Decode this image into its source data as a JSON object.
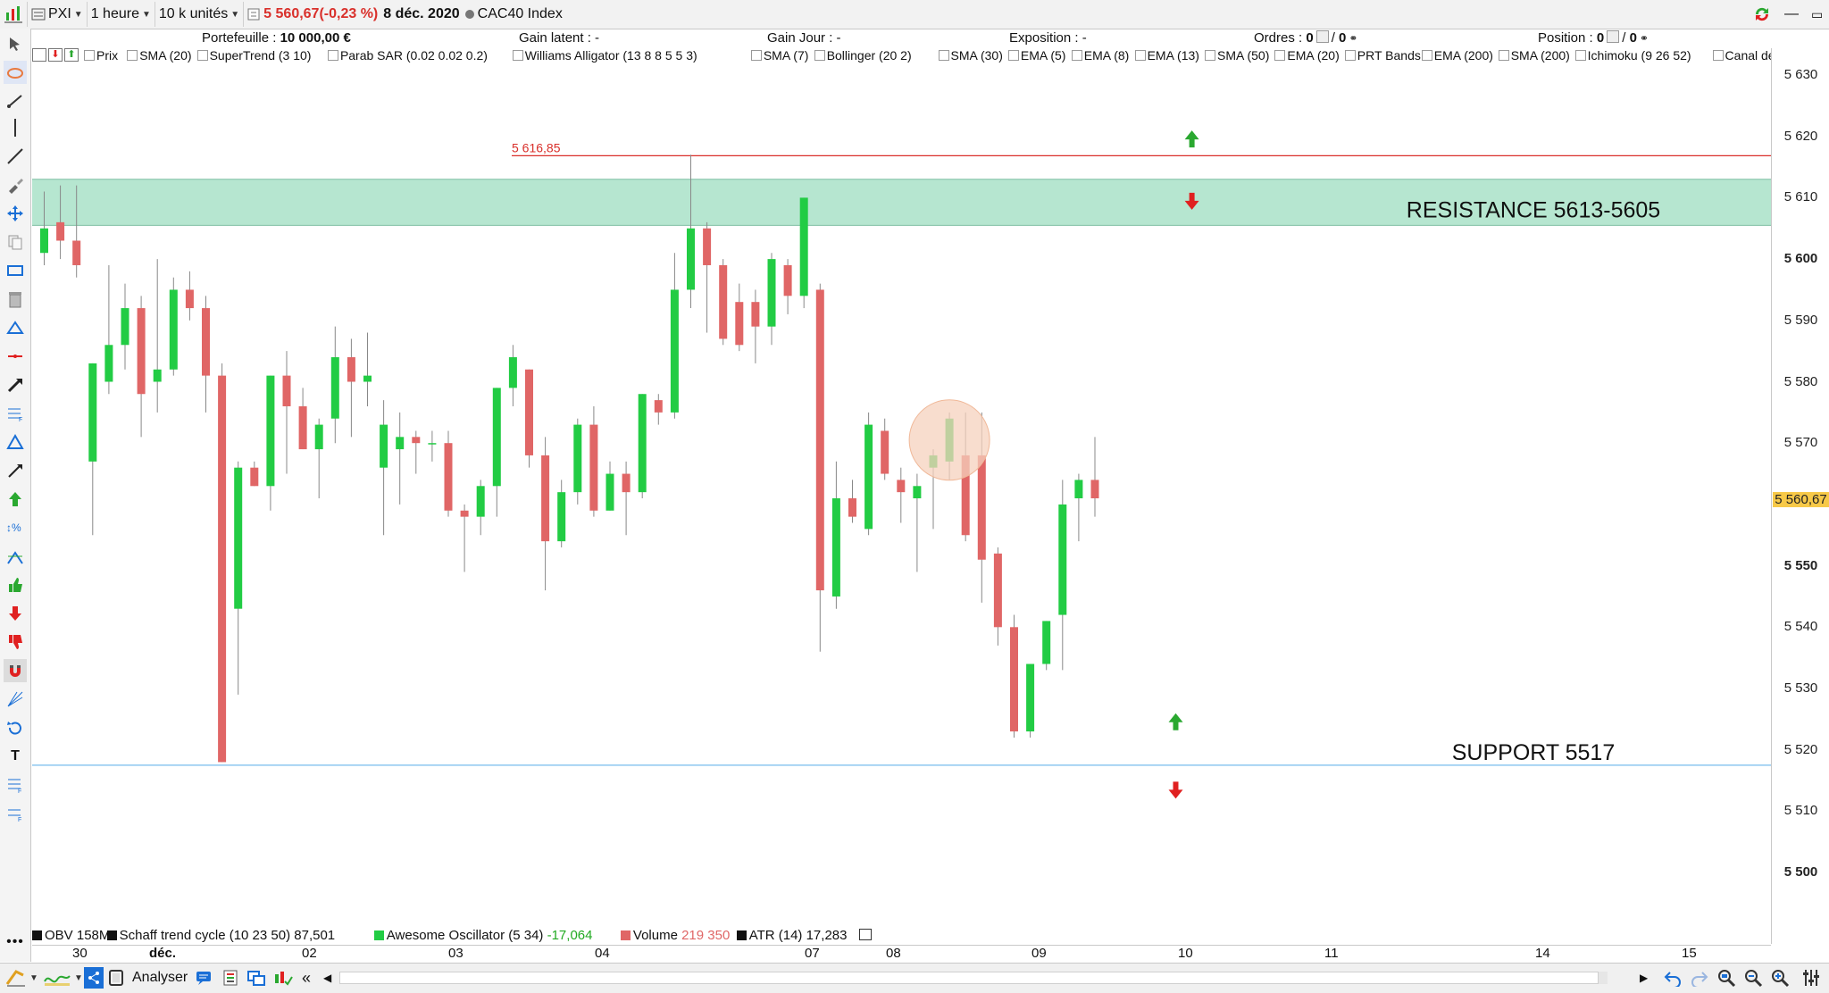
{
  "toolbar": {
    "symbol": "PXI",
    "timeframe": "1 heure",
    "units": "10 k unités",
    "price": "5 560,67",
    "change": "(-0,23 %)",
    "date": "8 déc. 2020",
    "instrument": "CAC40 Index"
  },
  "info": {
    "portfolio_label": "Portefeuille :",
    "portfolio_value": "10 000,00 €",
    "latent_gain": "Gain latent : -",
    "day_gain": "Gain Jour : -",
    "exposure": "Exposition : -",
    "orders_label": "Ordres :",
    "orders_value": "0",
    "orders_value2": "0",
    "position_label": "Position :",
    "position_value": "0",
    "position_value2": "0"
  },
  "indicators": [
    "Prix",
    "SMA (20)",
    "SuperTrend (3 10)",
    "Parab SAR (0.02 0.02 0.2)",
    "Williams Alligator (13 8 8 5 5 3)",
    "SMA (7)",
    "Bollinger (20 2)",
    "SMA (30)",
    "EMA (5)",
    "EMA (8)",
    "EMA (13)",
    "SMA (50)",
    "EMA (20)",
    "PRT Bands",
    "EMA (200)",
    "SMA (200)",
    "Ichimoku (9 26 52)",
    "Canal de Don"
  ],
  "chart_data": {
    "type": "candlestick",
    "ylim": [
      5497,
      5633
    ],
    "y_ticks": [
      "5 630",
      "5 620",
      "5 610",
      "5 600",
      "5 590",
      "5 580",
      "5 570",
      "5 560,67",
      "5 550",
      "5 540",
      "5 530",
      "5 520",
      "5 510",
      "5 500"
    ],
    "bold_ticks": [
      "5 600",
      "5 550",
      "5 500"
    ],
    "current_price": 5560.67,
    "current_price_label": "5 560,67",
    "x_labels": [
      "30",
      "déc.",
      "02",
      "03",
      "04",
      "07",
      "08",
      "09",
      "10",
      "11",
      "14",
      "15"
    ],
    "horizontal_line": {
      "value": 5616.85,
      "label": "5 616,85",
      "color": "#d9302b"
    },
    "resistance_zone": {
      "high": 5613,
      "low": 5605.5,
      "label": "RESISTANCE 5613-5605",
      "color": "#b6e6d0"
    },
    "support_line": {
      "value": 5517.5,
      "label": "SUPPORT 5517",
      "color": "#8ec8f0"
    },
    "up_color": "#22cc44",
    "down_color": "#e06666",
    "candles": [
      {
        "o": 5601,
        "h": 5611,
        "l": 5599,
        "c": 5605
      },
      {
        "o": 5606,
        "h": 5612,
        "l": 5600,
        "c": 5603
      },
      {
        "o": 5603,
        "h": 5612,
        "l": 5597,
        "c": 5599
      },
      {
        "o": 5567,
        "h": 5583,
        "l": 5555,
        "c": 5583
      },
      {
        "o": 5580,
        "h": 5599,
        "l": 5578,
        "c": 5586
      },
      {
        "o": 5586,
        "h": 5596,
        "l": 5582,
        "c": 5592
      },
      {
        "o": 5592,
        "h": 5594,
        "l": 5571,
        "c": 5578
      },
      {
        "o": 5580,
        "h": 5600,
        "l": 5575,
        "c": 5582
      },
      {
        "o": 5582,
        "h": 5597,
        "l": 5581,
        "c": 5595
      },
      {
        "o": 5595,
        "h": 5598,
        "l": 5590,
        "c": 5592
      },
      {
        "o": 5592,
        "h": 5594,
        "l": 5575,
        "c": 5581
      },
      {
        "o": 5581,
        "h": 5583,
        "l": 5518,
        "c": 5518
      },
      {
        "o": 5543,
        "h": 5567,
        "l": 5529,
        "c": 5566
      },
      {
        "o": 5566,
        "h": 5567,
        "l": 5563,
        "c": 5563
      },
      {
        "o": 5563,
        "h": 5581,
        "l": 5559,
        "c": 5581
      },
      {
        "o": 5581,
        "h": 5585,
        "l": 5565,
        "c": 5576
      },
      {
        "o": 5576,
        "h": 5579,
        "l": 5569,
        "c": 5569
      },
      {
        "o": 5569,
        "h": 5574,
        "l": 5561,
        "c": 5573
      },
      {
        "o": 5574,
        "h": 5589,
        "l": 5570,
        "c": 5584
      },
      {
        "o": 5584,
        "h": 5587,
        "l": 5571,
        "c": 5580
      },
      {
        "o": 5580,
        "h": 5588,
        "l": 5576,
        "c": 5581
      },
      {
        "o": 5566,
        "h": 5577,
        "l": 5555,
        "c": 5573
      },
      {
        "o": 5569,
        "h": 5575,
        "l": 5560,
        "c": 5571
      },
      {
        "o": 5571,
        "h": 5572,
        "l": 5565,
        "c": 5570
      },
      {
        "o": 5570,
        "h": 5572,
        "l": 5567,
        "c": 5570
      },
      {
        "o": 5570,
        "h": 5572,
        "l": 5558,
        "c": 5559
      },
      {
        "o": 5559,
        "h": 5560,
        "l": 5549,
        "c": 5558
      },
      {
        "o": 5558,
        "h": 5564,
        "l": 5555,
        "c": 5563
      },
      {
        "o": 5563,
        "h": 5579,
        "l": 5558,
        "c": 5579
      },
      {
        "o": 5579,
        "h": 5586,
        "l": 5576,
        "c": 5584
      },
      {
        "o": 5582,
        "h": 5582,
        "l": 5566,
        "c": 5568
      },
      {
        "o": 5568,
        "h": 5571,
        "l": 5546,
        "c": 5554
      },
      {
        "o": 5554,
        "h": 5564,
        "l": 5553,
        "c": 5562
      },
      {
        "o": 5562,
        "h": 5574,
        "l": 5560,
        "c": 5573
      },
      {
        "o": 5573,
        "h": 5576,
        "l": 5558,
        "c": 5559
      },
      {
        "o": 5559,
        "h": 5567,
        "l": 5559,
        "c": 5565
      },
      {
        "o": 5565,
        "h": 5567,
        "l": 5555,
        "c": 5562
      },
      {
        "o": 5562,
        "h": 5578,
        "l": 5561,
        "c": 5578
      },
      {
        "o": 5577,
        "h": 5578,
        "l": 5573,
        "c": 5575
      },
      {
        "o": 5575,
        "h": 5601,
        "l": 5574,
        "c": 5595
      },
      {
        "o": 5595,
        "h": 5617,
        "l": 5592,
        "c": 5605
      },
      {
        "o": 5605,
        "h": 5606,
        "l": 5588,
        "c": 5599
      },
      {
        "o": 5599,
        "h": 5600,
        "l": 5586,
        "c": 5587
      },
      {
        "o": 5593,
        "h": 5596,
        "l": 5585,
        "c": 5586
      },
      {
        "o": 5593,
        "h": 5595,
        "l": 5583,
        "c": 5589
      },
      {
        "o": 5589,
        "h": 5601,
        "l": 5586,
        "c": 5600
      },
      {
        "o": 5599,
        "h": 5600,
        "l": 5591,
        "c": 5594
      },
      {
        "o": 5594,
        "h": 5610,
        "l": 5592,
        "c": 5610
      },
      {
        "o": 5595,
        "h": 5596,
        "l": 5536,
        "c": 5546
      },
      {
        "o": 5545,
        "h": 5567,
        "l": 5543,
        "c": 5561
      },
      {
        "o": 5561,
        "h": 5564,
        "l": 5557,
        "c": 5558
      },
      {
        "o": 5556,
        "h": 5575,
        "l": 5555,
        "c": 5573
      },
      {
        "o": 5572,
        "h": 5574,
        "l": 5564,
        "c": 5565
      },
      {
        "o": 5564,
        "h": 5566,
        "l": 5557,
        "c": 5562
      },
      {
        "o": 5561,
        "h": 5565,
        "l": 5549,
        "c": 5563
      },
      {
        "o": 5566,
        "h": 5569,
        "l": 5556,
        "c": 5568
      },
      {
        "o": 5567,
        "h": 5575,
        "l": 5564,
        "c": 5574
      },
      {
        "o": 5568,
        "h": 5575,
        "l": 5554,
        "c": 5555
      },
      {
        "o": 5568,
        "h": 5575,
        "l": 5544,
        "c": 5551
      },
      {
        "o": 5552,
        "h": 5553,
        "l": 5537,
        "c": 5540
      },
      {
        "o": 5540,
        "h": 5542,
        "l": 5522,
        "c": 5523
      },
      {
        "o": 5523,
        "h": 5534,
        "l": 5522,
        "c": 5534
      },
      {
        "o": 5534,
        "h": 5541,
        "l": 5533,
        "c": 5541
      },
      {
        "o": 5542,
        "h": 5564,
        "l": 5533,
        "c": 5560
      },
      {
        "o": 5561,
        "h": 5565,
        "l": 5554,
        "c": 5564
      },
      {
        "o": 5564,
        "h": 5571,
        "l": 5558,
        "c": 5561
      }
    ],
    "arrows": [
      {
        "direction": "up",
        "candle_index": 71,
        "price": 5619.5,
        "color": "#2aa830"
      },
      {
        "direction": "down",
        "candle_index": 71,
        "price": 5609.5,
        "color": "#e02020"
      },
      {
        "direction": "up",
        "candle_index": 70,
        "price": 5524.5,
        "color": "#2aa830"
      },
      {
        "direction": "down",
        "candle_index": 70,
        "price": 5513.5,
        "color": "#e02020"
      }
    ],
    "highlight_circle": {
      "candle_index": 56,
      "price": 5570.5,
      "color": "#f6d2bd"
    }
  },
  "bottom_indicators": [
    {
      "name": "OBV",
      "value": "158M",
      "value_color": "#111111",
      "swatch": "#111111"
    },
    {
      "name": "Schaff trend cycle (10 23 50)",
      "value": "87,501",
      "value_color": "#111111",
      "swatch": "#111111"
    },
    {
      "name": "Awesome Oscillator (5 34)",
      "value": "-17,064",
      "value_color": "#22aa22",
      "swatch": "#22cc44"
    },
    {
      "name": "Volume",
      "value": "219 350",
      "value_color": "#e06666",
      "swatch": "#e06666"
    },
    {
      "name": "ATR (14)",
      "value": "17,283",
      "value_color": "#111111",
      "swatch": "#111111"
    }
  ],
  "statusbar": {
    "analyze_label": "Analyser"
  },
  "colors": {
    "accent": "#ffa500",
    "price_badge": "#f7c948"
  }
}
